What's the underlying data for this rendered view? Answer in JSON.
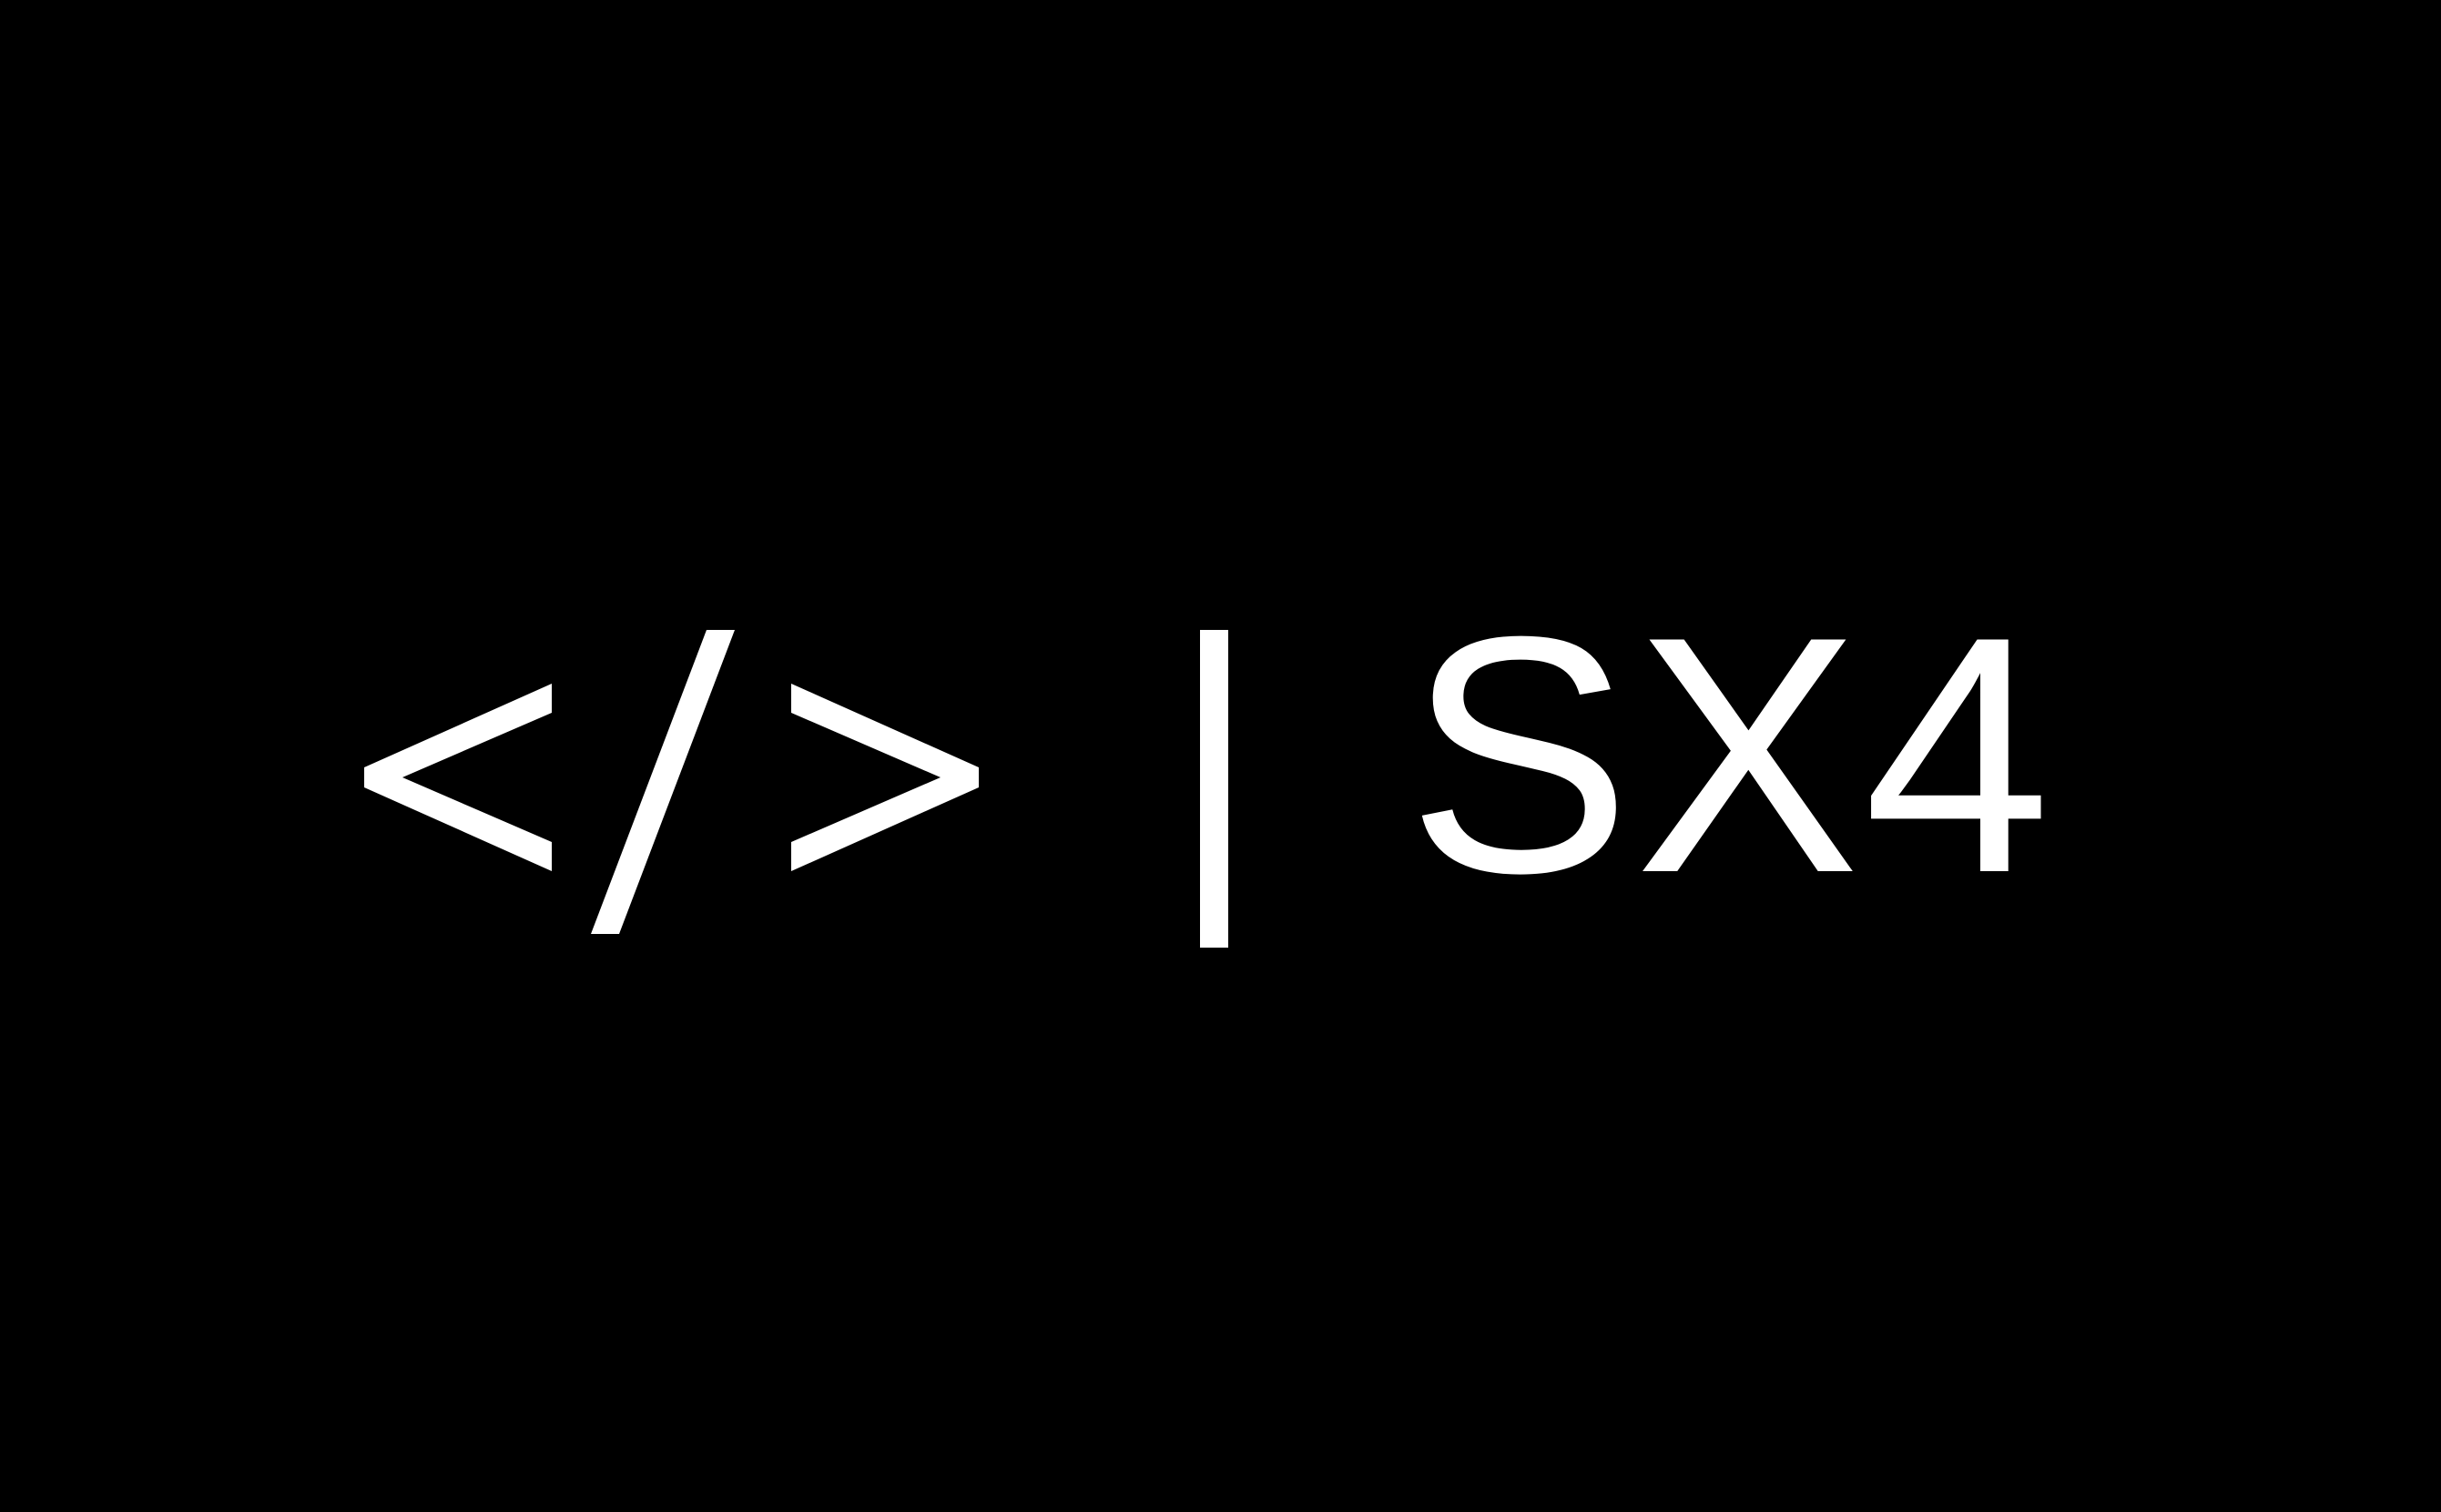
{
  "logo": {
    "text": "SX4",
    "code_icon": "code-brackets-icon",
    "divider_icon": "vertical-divider-icon"
  },
  "colors": {
    "background": "#000000",
    "foreground": "#ffffff"
  }
}
